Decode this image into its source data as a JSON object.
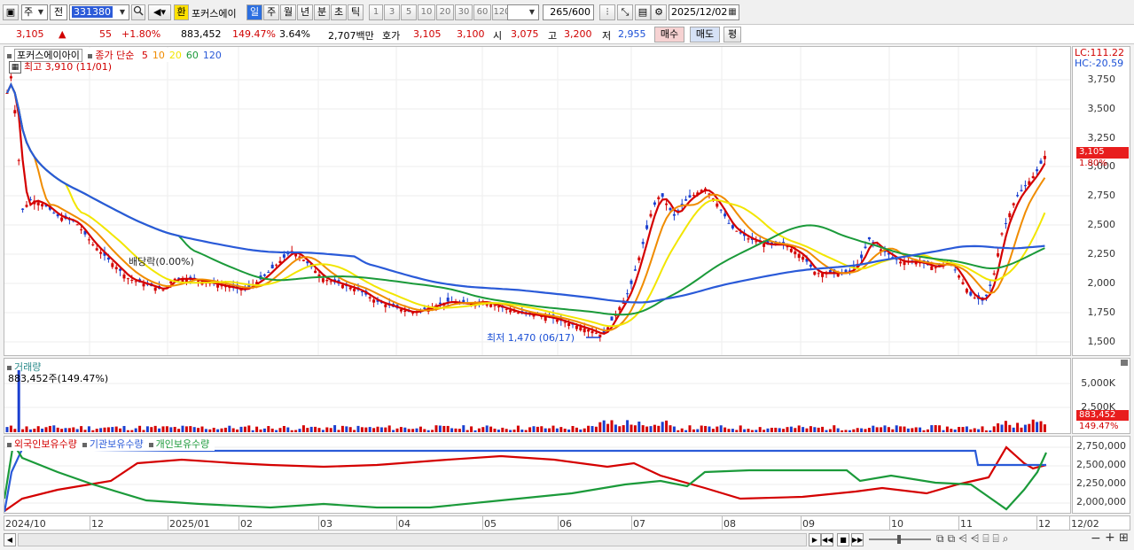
{
  "toolbar": {
    "type_label": "주",
    "prev_label": "전",
    "code": "331380",
    "hwan_label": "환",
    "stock_name": "포커스에이",
    "periods": [
      "일",
      "주",
      "월",
      "년",
      "분",
      "초",
      "틱"
    ],
    "active_period": "일",
    "intervals": [
      "1",
      "3",
      "5",
      "10",
      "20",
      "30",
      "60",
      "120"
    ],
    "count": "265",
    "count_total": "/600",
    "date": "2025/12/02"
  },
  "quote": {
    "price": "3,105",
    "arrow": "▲",
    "change": "55",
    "change_pct": "+1.80%",
    "volume": "883,452",
    "vol_ratio": "149.47%",
    "turnover": "3.64%",
    "amount": "2,707백만",
    "hoga_label": "호가",
    "bid": "3,105",
    "ask": "3,100",
    "open_label": "시",
    "open": "3,075",
    "high_label": "고",
    "high": "3,200",
    "low_label": "저",
    "low": "2,955",
    "buy_label": "매수",
    "sell_label": "매도",
    "eval_label": "평"
  },
  "price_panel": {
    "legend_name": "포커스에이아이",
    "legend_ma_label": "종가 단순",
    "ma_periods": [
      "5",
      "10",
      "20",
      "60",
      "120"
    ],
    "ma_colors": [
      "#d40000",
      "#f08c00",
      "#f2e600",
      "#1b9a3a",
      "#2a5ad8"
    ],
    "high_note": "최고 3,910 (11/01)",
    "low_note": "최저 1,470 (06/17)",
    "dividend_note": "배당락(0.00%)",
    "lc": "LC:111.22",
    "hc": "HC:-20.59",
    "current_tag": "3,105",
    "current_pct": "1.80%",
    "y_ticks": [
      "3,750",
      "3,500",
      "3,250",
      "3,000",
      "2,750",
      "2,500",
      "2,250",
      "2,000",
      "1,750",
      "1,500"
    ]
  },
  "volume_panel": {
    "title": "거래량",
    "value_note": "883,452주(149.47%)",
    "y_ticks": [
      "5,000K",
      "2,500K"
    ],
    "tag_value": "883,452",
    "tag_pct": "149.47%"
  },
  "holdings_panel": {
    "legends": [
      "외국인보유수량",
      "기관보유수량",
      "개인보유수량"
    ],
    "legend_colors": [
      "#d40000",
      "#2a5ad8",
      "#1b9a3a"
    ],
    "y_ticks": [
      "2,750,000",
      "2,500,000",
      "2,250,000",
      "2,000,000"
    ]
  },
  "x_axis": {
    "labels": [
      "2024/10",
      "12",
      "2025/01",
      "02",
      "03",
      "04",
      "05",
      "06",
      "07",
      "08",
      "09",
      "10",
      "11",
      "12",
      "12/02"
    ]
  },
  "icons": [
    "layout-icon",
    "search-icon",
    "volume-icon",
    "crosshair-icon",
    "save-icon",
    "gear-icon",
    "calendar-icon",
    "zoom-icon"
  ]
}
